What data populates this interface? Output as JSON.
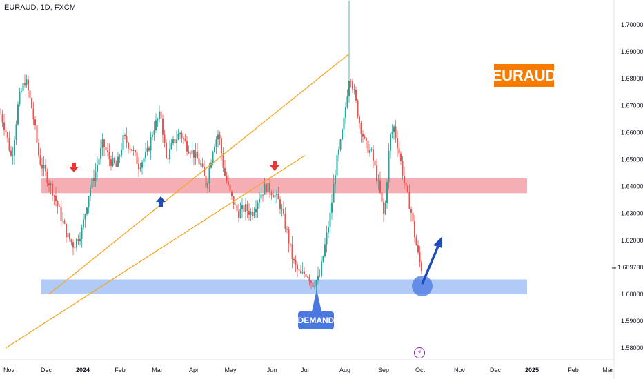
{
  "header": {
    "symbol_line": "EURAUD, 1D, FXCM"
  },
  "badge": {
    "label": "EURAUD",
    "color": "#f57c00"
  },
  "demand_label": "DEMAND",
  "current_price": "1.60973",
  "colors": {
    "bull": "#26a69a",
    "bear": "#ef5350",
    "resistance_zone": "#f4a6ac",
    "demand_zone": "#a9c4f5",
    "channel": "#f5a623",
    "arrow_blue": "#1e4bb8",
    "arrow_red": "#e53935"
  },
  "icons": {
    "bolt": "lightning-icon",
    "bolt_glyph": "⚡"
  },
  "chart_data": {
    "type": "candlestick",
    "title": "EURAUD, 1D, FXCM",
    "y_ticks": [
      "1.70000",
      "1.69000",
      "1.68000",
      "1.67000",
      "1.66000",
      "1.65000",
      "1.64000",
      "1.63000",
      "1.62000",
      "1.61000",
      "1.60000",
      "1.59000",
      "1.58000"
    ],
    "x_ticks": [
      "Nov",
      "Dec",
      "2024",
      "Feb",
      "Mar",
      "Apr",
      "May",
      "Jun",
      "Jul",
      "Aug",
      "Sep",
      "Oct",
      "Nov",
      "Dec",
      "2025",
      "Feb",
      "Mar"
    ],
    "ylim": [
      1.576,
      1.709
    ],
    "resistance_zone": [
      1.6375,
      1.643
    ],
    "demand_zone": [
      1.6,
      1.6055
    ],
    "channel": {
      "upper": [
        [
          "Aug",
          1.689
        ],
        [
          "Dec",
          1.6
        ]
      ],
      "lower": [
        [
          "Jul",
          1.6515
        ],
        [
          "Nov",
          1.58
        ]
      ]
    },
    "key_points": [
      {
        "label": "high",
        "date": "Aug",
        "value": 1.706
      },
      {
        "label": "current",
        "date": "Oct",
        "value": 1.60973
      }
    ],
    "grid": false
  }
}
